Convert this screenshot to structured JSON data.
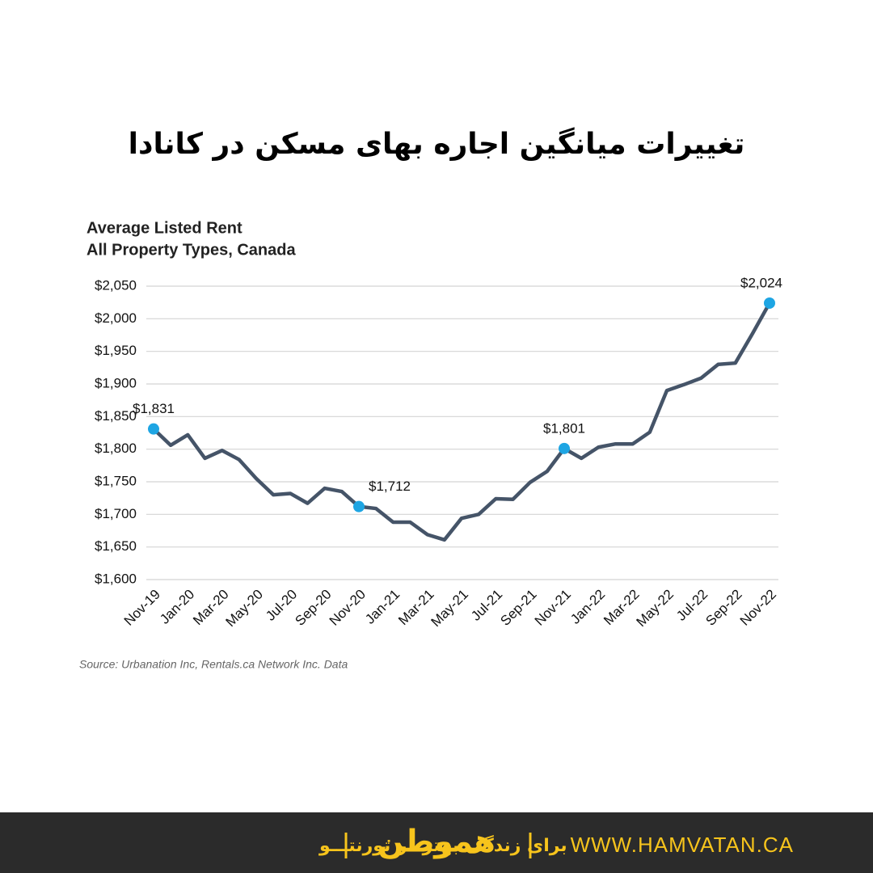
{
  "page": {
    "title": "تغییرات میانگین اجاره بهای مسکن در کانادا"
  },
  "chart_data": {
    "type": "line",
    "title": "Average Listed Rent",
    "subtitle": "All Property Types, Canada",
    "source": "Source: Urbanation Inc, Rentals.ca Network Inc. Data",
    "categories": [
      "Nov-19",
      null,
      "Jan-20",
      null,
      "Mar-20",
      null,
      "May-20",
      null,
      "Jul-20",
      null,
      "Sep-20",
      null,
      "Nov-20",
      null,
      "Jan-21",
      null,
      "Mar-21",
      null,
      "May-21",
      null,
      "Jul-21",
      null,
      "Sep-21",
      null,
      "Nov-21",
      null,
      "Jan-22",
      null,
      "Mar-22",
      null,
      "May-22",
      null,
      "Jul-22",
      null,
      "Sep-22",
      null,
      "Nov-22"
    ],
    "series": [
      {
        "name": "Average Listed Rent",
        "color": "#455468",
        "values": [
          1831,
          1806,
          1822,
          1786,
          1798,
          1784,
          1755,
          1730,
          1732,
          1717,
          1740,
          1735,
          1712,
          1709,
          1688,
          1688,
          1669,
          1661,
          1694,
          1700,
          1724,
          1723,
          1749,
          1766,
          1801,
          1786,
          1803,
          1808,
          1808,
          1826,
          1890,
          1899,
          1909,
          1930,
          1932,
          1977,
          2024
        ],
        "value_labels": [
          "$1,831",
          null,
          null,
          null,
          null,
          null,
          null,
          null,
          null,
          null,
          null,
          null,
          "$1,712",
          null,
          null,
          null,
          null,
          null,
          null,
          null,
          null,
          null,
          null,
          null,
          "$1,801",
          null,
          null,
          null,
          null,
          null,
          null,
          null,
          null,
          null,
          null,
          null,
          "$2,024"
        ],
        "marker_color": "#1ea5e3"
      }
    ],
    "ylim": [
      1600,
      2050
    ],
    "yticks": [
      {
        "value": 1600,
        "label": "$1,600"
      },
      {
        "value": 1650,
        "label": "$1,650"
      },
      {
        "value": 1700,
        "label": "$1,700"
      },
      {
        "value": 1750,
        "label": "$1,750"
      },
      {
        "value": 1800,
        "label": "$1,800"
      },
      {
        "value": 1850,
        "label": "$1,850"
      },
      {
        "value": 1900,
        "label": "$1,900"
      },
      {
        "value": 1950,
        "label": "$1,950"
      },
      {
        "value": 2000,
        "label": "$2,000"
      },
      {
        "value": 2050,
        "label": "$2,050"
      }
    ],
    "grid": true
  },
  "footer": {
    "website": "WWW.HAMVATAN.CA",
    "logo": "هموطن",
    "tagline": "برای زندگی بهتر در تورنتـــو"
  }
}
